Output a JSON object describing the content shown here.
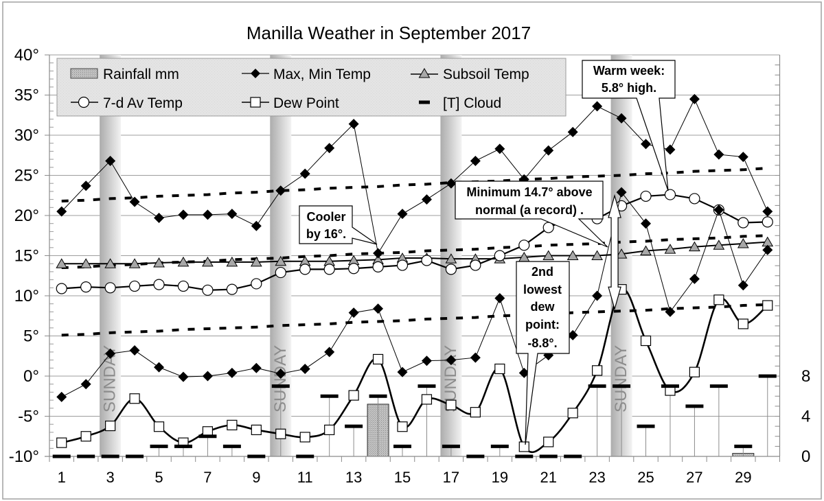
{
  "chart_data": {
    "type": "line",
    "title": "Manilla Weather in September 2017",
    "xlabel": "",
    "ylabel": "",
    "x": [
      1,
      2,
      3,
      4,
      5,
      6,
      7,
      8,
      9,
      10,
      11,
      12,
      13,
      14,
      15,
      16,
      17,
      18,
      19,
      20,
      21,
      22,
      23,
      24,
      25,
      26,
      27,
      28,
      29,
      30
    ],
    "x_tick_values": [
      1,
      3,
      5,
      7,
      9,
      11,
      13,
      15,
      17,
      19,
      21,
      23,
      25,
      27,
      29
    ],
    "x_tick_labels": [
      "1",
      "3",
      "5",
      "7",
      "9",
      "11",
      "13",
      "15",
      "17",
      "19",
      "21",
      "23",
      "25",
      "27",
      "29"
    ],
    "ylim": [
      -10,
      40
    ],
    "y_ticks": [
      40,
      35,
      30,
      25,
      20,
      15,
      10,
      5,
      0,
      -5,
      -10
    ],
    "y_tick_labels": [
      "40°",
      "35°",
      "30°",
      "25°",
      "20°",
      "15°",
      "10°",
      "5°",
      "0°",
      "-5°",
      "-10°"
    ],
    "y2_ticks": [
      8,
      4,
      0
    ],
    "y2_tick_labels": [
      "8",
      "4",
      "0"
    ],
    "grid": true,
    "legend_position": "top-left, inside plot area",
    "series": [
      {
        "name": "Max Temp",
        "legend": "Max, Min Temp",
        "marker": "diamond",
        "axis": "left",
        "values": [
          20.5,
          23.7,
          26.8,
          21.7,
          19.7,
          20.1,
          20.1,
          20.2,
          18.7,
          23.1,
          25.2,
          28.4,
          31.4,
          15.3,
          20.2,
          22.0,
          24.0,
          26.8,
          28.3,
          24.5,
          28.1,
          30.4,
          33.6,
          32.1,
          28.9,
          28.2,
          34.5,
          27.6,
          27.3,
          20.5
        ]
      },
      {
        "name": "Min Temp",
        "legend": "Max, Min Temp",
        "marker": "diamond",
        "axis": "left",
        "values": [
          -2.6,
          -1.0,
          2.8,
          3.2,
          1.1,
          -0.1,
          0.0,
          0.4,
          1.0,
          0.3,
          0.9,
          3.0,
          7.9,
          8.4,
          0.5,
          1.9,
          2.0,
          2.3,
          9.7,
          0.4,
          2.6,
          5.1,
          10.0,
          22.9,
          19.0,
          8.0,
          12.1,
          20.7,
          11.3,
          15.7
        ]
      },
      {
        "name": "7-d Av Temp",
        "marker": "circle",
        "axis": "left",
        "values": [
          10.9,
          11.1,
          11.0,
          11.2,
          11.4,
          11.2,
          10.7,
          10.8,
          11.5,
          12.9,
          13.3,
          13.3,
          13.4,
          13.6,
          13.8,
          14.4,
          13.3,
          13.8,
          15.0,
          16.3,
          18.5,
          19.8,
          19.6,
          21.2,
          22.4,
          22.6,
          22.1,
          20.7,
          19.1,
          19.2
        ]
      },
      {
        "name": "Subsoil Temp",
        "marker": "triangle",
        "axis": "left",
        "values": [
          14.0,
          14.0,
          14.0,
          14.0,
          14.1,
          14.2,
          14.2,
          14.2,
          14.2,
          14.3,
          14.3,
          14.3,
          14.4,
          14.5,
          14.7,
          14.7,
          14.6,
          14.6,
          14.6,
          14.8,
          15.0,
          15.0,
          15.0,
          15.2,
          15.6,
          15.8,
          16.1,
          16.3,
          16.5,
          16.7
        ]
      },
      {
        "name": "Dew Point",
        "marker": "square",
        "smooth": true,
        "axis": "left",
        "values": [
          -8.3,
          -7.5,
          -6.2,
          -2.8,
          -6.3,
          -8.3,
          -6.9,
          -6.1,
          -6.7,
          -7.2,
          -7.6,
          -6.7,
          -2.4,
          2.1,
          -6.3,
          -2.9,
          -3.6,
          -4.5,
          0.9,
          -8.8,
          -8.2,
          -4.6,
          0.7,
          10.8,
          4.4,
          -1.8,
          0.5,
          9.5,
          6.5,
          8.8
        ]
      },
      {
        "name": "Normal Max Temp (dashed)",
        "style": "dashed",
        "axis": "left",
        "values": [
          21.8,
          21.9,
          22.1,
          22.2,
          22.4,
          22.5,
          22.6,
          22.8,
          22.9,
          23.1,
          23.2,
          23.4,
          23.5,
          23.6,
          23.8,
          23.9,
          24.1,
          24.2,
          24.3,
          24.5,
          24.6,
          24.8,
          24.9,
          25.0,
          25.2,
          25.3,
          25.5,
          25.6,
          25.7,
          25.9
        ]
      },
      {
        "name": "Normal Mean Temp (dashed)",
        "style": "dashed",
        "axis": "left",
        "values": [
          13.5,
          13.6,
          13.8,
          13.9,
          14.1,
          14.2,
          14.3,
          14.5,
          14.6,
          14.7,
          14.9,
          15.0,
          15.2,
          15.3,
          15.4,
          15.6,
          15.7,
          15.8,
          16.0,
          16.1,
          16.3,
          16.4,
          16.5,
          16.7,
          16.8,
          17.0,
          17.1,
          17.2,
          17.4,
          17.5
        ]
      },
      {
        "name": "Normal Min Temp (dashed)",
        "style": "dashed",
        "axis": "left",
        "values": [
          5.1,
          5.2,
          5.4,
          5.5,
          5.6,
          5.8,
          5.9,
          6.0,
          6.1,
          6.3,
          6.4,
          6.5,
          6.7,
          6.8,
          6.9,
          7.1,
          7.2,
          7.3,
          7.5,
          7.6,
          7.7,
          7.9,
          8.0,
          8.1,
          8.2,
          8.4,
          8.5,
          8.6,
          8.8,
          8.9
        ]
      },
      {
        "name": "Rainfall mm",
        "type": "bar",
        "axis": "right",
        "values": [
          0,
          0,
          0,
          0,
          0,
          0,
          0,
          0,
          0,
          0,
          0,
          0,
          0,
          5.2,
          0,
          0,
          0,
          0,
          0,
          0,
          0,
          0,
          0,
          0,
          0,
          0,
          0,
          0,
          0.3,
          0
        ]
      },
      {
        "name": "[T] Cloud",
        "type": "dash",
        "axis": "right",
        "values": [
          0,
          0,
          0,
          0,
          1,
          1,
          2,
          1,
          0,
          7,
          0,
          6,
          3,
          6,
          1,
          7,
          1,
          0,
          1,
          0,
          0,
          0,
          7,
          7,
          3,
          7,
          5,
          7,
          1,
          8
        ]
      }
    ],
    "highlight_bands": {
      "label": "SUNDAY",
      "days": [
        3,
        10,
        17,
        24
      ]
    },
    "annotations": [
      {
        "id": "cooler",
        "lines": [
          "Cooler",
          "by 16°."
        ],
        "target_day": 14,
        "target_value": 15.3
      },
      {
        "id": "record-min",
        "lines": [
          "Minimum 14.7° above",
          "normal (a record) ."
        ],
        "target_day": 24,
        "target_value": 22.9
      },
      {
        "id": "warm-week",
        "lines": [
          "Warm week:",
          "5.8° high."
        ],
        "target_day": 26,
        "target_value": 22.6
      },
      {
        "id": "low-dew",
        "lines": [
          "2nd",
          "lowest",
          "dew",
          "point:",
          "-8.8°."
        ],
        "target_day": 20,
        "target_value": -8.8
      }
    ],
    "arrow": {
      "day": 24,
      "from_value": 8.1,
      "to_value": 22.9
    }
  },
  "legend": {
    "items": [
      {
        "label": "Rainfall mm",
        "icon": "rain-bar-swatch"
      },
      {
        "label": "Max, Min Temp",
        "icon": "diamond-line-marker"
      },
      {
        "label": "Subsoil Temp",
        "icon": "triangle-line-marker"
      },
      {
        "label": "7-d Av Temp",
        "icon": "circle-line-marker"
      },
      {
        "label": "Dew Point",
        "icon": "square-line-marker"
      },
      {
        "label": "[T] Cloud",
        "icon": "dash-marker"
      }
    ]
  },
  "colors": {
    "series_line": "#000000",
    "subsoil_marker": "#a8a8a8",
    "rain_bar": "#bdbdbd",
    "sunday_band": "#b0b0b0",
    "gridline": "#9c9c9c",
    "legend_bg": "#e3e3e3",
    "sunday_text": "#8c8c8c"
  }
}
